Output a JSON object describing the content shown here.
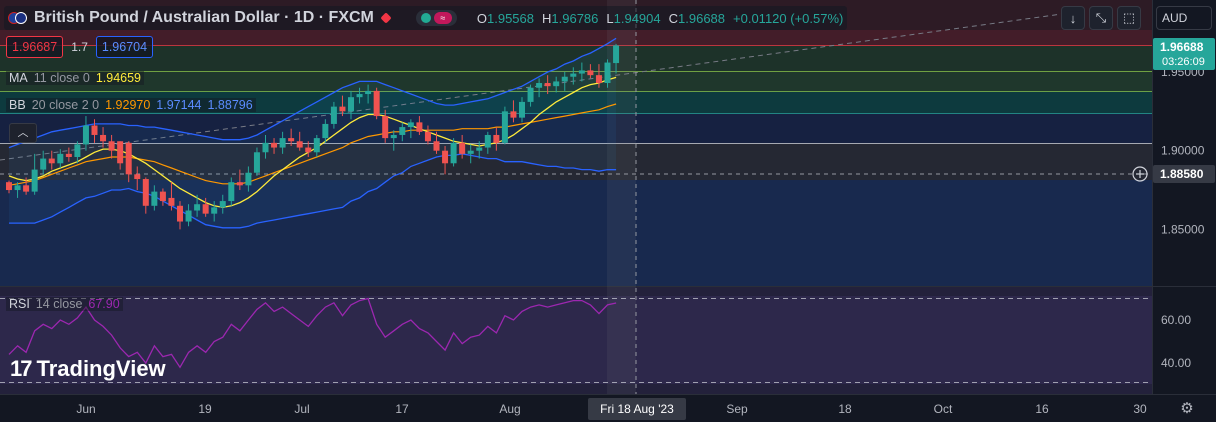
{
  "header": {
    "symbol_title": "British Pound / Australian Dollar · 1D · FXCM",
    "ohlc": [
      {
        "key": "O",
        "value": "1.95568"
      },
      {
        "key": "H",
        "value": "1.96786"
      },
      {
        "key": "L",
        "value": "1.94904"
      },
      {
        "key": "C",
        "value": "1.96688"
      }
    ],
    "change": "+0.01120 (+0.57%)",
    "currency": "AUD"
  },
  "trade": {
    "sell_price": "1.96687",
    "spread": "1.7",
    "buy_price": "1.96704"
  },
  "indicators": {
    "ma": {
      "name": "MA",
      "params": "11 close 0",
      "value": "1.94659",
      "color": "#ffeb3b"
    },
    "bb": {
      "name": "BB",
      "params": "20 close 2 0",
      "basis": "1.92970",
      "upper": "1.97144",
      "lower": "1.88796",
      "basis_color": "#ff9800",
      "band_color": "#2962ff"
    },
    "rsi": {
      "name": "RSI",
      "params": "14 close",
      "value": "67.90",
      "color": "#9c27b0"
    }
  },
  "price_axis": {
    "ticks": [
      "1.95000",
      "1.90000",
      "1.85000"
    ],
    "last_price": "1.96688",
    "countdown": "03:26:09",
    "crosshair_price": "1.88580"
  },
  "rsi_axis": {
    "ticks": [
      "60.00",
      "40.00"
    ]
  },
  "time_axis": {
    "ticks": [
      "Jun",
      "19",
      "Jul",
      "17",
      "Aug",
      "Sep",
      "18",
      "Oct",
      "16",
      "30"
    ],
    "crosshair_label": "Fri 18 Aug '23"
  },
  "branding": {
    "logo_text": "TradingView"
  },
  "colors": {
    "up": "#26a69a",
    "down": "#ef5350",
    "background": "#131722",
    "rsi": "#9c27b0"
  },
  "chart_data": {
    "type": "candlestick",
    "ohlc": [
      [
        1.88,
        1.881,
        1.873,
        1.875
      ],
      [
        1.875,
        1.88,
        1.87,
        1.878
      ],
      [
        1.878,
        1.883,
        1.872,
        1.874
      ],
      [
        1.874,
        1.898,
        1.872,
        1.888
      ],
      [
        1.888,
        1.9,
        1.885,
        1.895
      ],
      [
        1.895,
        1.9,
        1.888,
        1.892
      ],
      [
        1.892,
        1.901,
        1.889,
        1.898
      ],
      [
        1.898,
        1.902,
        1.893,
        1.896
      ],
      [
        1.896,
        1.906,
        1.892,
        1.904
      ],
      [
        1.904,
        1.922,
        1.9,
        1.916
      ],
      [
        1.916,
        1.92,
        1.905,
        1.91
      ],
      [
        1.91,
        1.915,
        1.902,
        1.906
      ],
      [
        1.906,
        1.91,
        1.895,
        1.9
      ],
      [
        1.906,
        1.906,
        1.888,
        1.892
      ],
      [
        1.905,
        1.906,
        1.88,
        1.885
      ],
      [
        1.885,
        1.89,
        1.875,
        1.882
      ],
      [
        1.882,
        1.883,
        1.86,
        1.865
      ],
      [
        1.865,
        1.878,
        1.862,
        1.874
      ],
      [
        1.874,
        1.876,
        1.865,
        1.868
      ],
      [
        1.87,
        1.88,
        1.862,
        1.865
      ],
      [
        1.865,
        1.868,
        1.85,
        1.855
      ],
      [
        1.855,
        1.866,
        1.852,
        1.862
      ],
      [
        1.862,
        1.872,
        1.858,
        1.866
      ],
      [
        1.866,
        1.87,
        1.858,
        1.86
      ],
      [
        1.86,
        1.868,
        1.855,
        1.864
      ],
      [
        1.864,
        1.872,
        1.86,
        1.868
      ],
      [
        1.868,
        1.883,
        1.865,
        1.88
      ],
      [
        1.88,
        1.888,
        1.875,
        1.878
      ],
      [
        1.878,
        1.89,
        1.874,
        1.886
      ],
      [
        1.886,
        1.902,
        1.884,
        1.899
      ],
      [
        1.899,
        1.91,
        1.895,
        1.905
      ],
      [
        1.905,
        1.908,
        1.898,
        1.902
      ],
      [
        1.902,
        1.912,
        1.898,
        1.908
      ],
      [
        1.908,
        1.914,
        1.903,
        1.906
      ],
      [
        1.906,
        1.912,
        1.9,
        1.902
      ],
      [
        1.902,
        1.906,
        1.896,
        1.899
      ],
      [
        1.899,
        1.91,
        1.896,
        1.908
      ],
      [
        1.908,
        1.92,
        1.905,
        1.917
      ],
      [
        1.917,
        1.931,
        1.914,
        1.928
      ],
      [
        1.928,
        1.935,
        1.922,
        1.925
      ],
      [
        1.925,
        1.938,
        1.92,
        1.934
      ],
      [
        1.934,
        1.94,
        1.93,
        1.936
      ],
      [
        1.936,
        1.942,
        1.93,
        1.938
      ],
      [
        1.938,
        1.94,
        1.92,
        1.922
      ],
      [
        1.922,
        1.926,
        1.905,
        1.908
      ],
      [
        1.908,
        1.913,
        1.9,
        1.91
      ],
      [
        1.91,
        1.918,
        1.906,
        1.915
      ],
      [
        1.915,
        1.92,
        1.908,
        1.918
      ],
      [
        1.918,
        1.922,
        1.91,
        1.912
      ],
      [
        1.912,
        1.916,
        1.904,
        1.906
      ],
      [
        1.906,
        1.912,
        1.898,
        1.9
      ],
      [
        1.9,
        1.903,
        1.885,
        1.892
      ],
      [
        1.892,
        1.908,
        1.89,
        1.905
      ],
      [
        1.905,
        1.91,
        1.895,
        1.898
      ],
      [
        1.898,
        1.904,
        1.892,
        1.9
      ],
      [
        1.9,
        1.906,
        1.895,
        1.902
      ],
      [
        1.902,
        1.912,
        1.898,
        1.91
      ],
      [
        1.91,
        1.915,
        1.9,
        1.905
      ],
      [
        1.905,
        1.928,
        1.904,
        1.925
      ],
      [
        1.925,
        1.932,
        1.918,
        1.921
      ],
      [
        1.921,
        1.934,
        1.918,
        1.931
      ],
      [
        1.931,
        1.942,
        1.928,
        1.94
      ],
      [
        1.94,
        1.946,
        1.934,
        1.943
      ],
      [
        1.943,
        1.948,
        1.936,
        1.941
      ],
      [
        1.941,
        1.947,
        1.937,
        1.944
      ],
      [
        1.944,
        1.95,
        1.938,
        1.947
      ],
      [
        1.947,
        1.953,
        1.942,
        1.949
      ],
      [
        1.949,
        1.956,
        1.944,
        1.951
      ],
      [
        1.951,
        1.955,
        1.946,
        1.948
      ],
      [
        1.948,
        1.955,
        1.94,
        1.943
      ],
      [
        1.943,
        1.958,
        1.94,
        1.956
      ],
      [
        1.95568,
        1.96786,
        1.94904,
        1.96688
      ]
    ],
    "ma_11": [
      1.884,
      1.882,
      1.881,
      1.882,
      1.884,
      1.887,
      1.889,
      1.891,
      1.893,
      1.896,
      1.899,
      1.901,
      1.901,
      1.9,
      1.898,
      1.895,
      1.892,
      1.888,
      1.884,
      1.88,
      1.876,
      1.873,
      1.87,
      1.867,
      1.865,
      1.864,
      1.865,
      1.867,
      1.87,
      1.874,
      1.879,
      1.884,
      1.888,
      1.892,
      1.896,
      1.899,
      1.902,
      1.906,
      1.91,
      1.914,
      1.918,
      1.921,
      1.923,
      1.923,
      1.922,
      1.92,
      1.918,
      1.916,
      1.914,
      1.912,
      1.91,
      1.908,
      1.906,
      1.905,
      1.904,
      1.903,
      1.904,
      1.905,
      1.907,
      1.91,
      1.914,
      1.918,
      1.923,
      1.927,
      1.931,
      1.934,
      1.937,
      1.94,
      1.942,
      1.943,
      1.945,
      1.94659
    ],
    "bb_basis": [
      1.878,
      1.879,
      1.88,
      1.881,
      1.883,
      1.885,
      1.887,
      1.889,
      1.891,
      1.893,
      1.894,
      1.895,
      1.896,
      1.896,
      1.896,
      1.895,
      1.894,
      1.893,
      1.891,
      1.889,
      1.887,
      1.885,
      1.883,
      1.881,
      1.88,
      1.879,
      1.879,
      1.879,
      1.88,
      1.882,
      1.884,
      1.886,
      1.888,
      1.89,
      1.892,
      1.894,
      1.896,
      1.898,
      1.9,
      1.902,
      1.905,
      1.907,
      1.909,
      1.91,
      1.911,
      1.912,
      1.912,
      1.913,
      1.913,
      1.913,
      1.913,
      1.913,
      1.913,
      1.914,
      1.914,
      1.914,
      1.914,
      1.915,
      1.915,
      1.916,
      1.917,
      1.918,
      1.919,
      1.92,
      1.921,
      1.922,
      1.923,
      1.924,
      1.925,
      1.926,
      1.928,
      1.9297
    ],
    "bb_upper": [
      1.902,
      1.904,
      1.906,
      1.908,
      1.91,
      1.912,
      1.913,
      1.914,
      1.915,
      1.916,
      1.917,
      1.917,
      1.917,
      1.917,
      1.916,
      1.916,
      1.915,
      1.915,
      1.914,
      1.913,
      1.912,
      1.911,
      1.91,
      1.909,
      1.908,
      1.907,
      1.907,
      1.907,
      1.908,
      1.91,
      1.913,
      1.916,
      1.919,
      1.922,
      1.925,
      1.928,
      1.931,
      1.934,
      1.937,
      1.94,
      1.942,
      1.944,
      1.944,
      1.944,
      1.942,
      1.94,
      1.938,
      1.936,
      1.934,
      1.932,
      1.93,
      1.929,
      1.929,
      1.93,
      1.931,
      1.932,
      1.933,
      1.935,
      1.937,
      1.939,
      1.941,
      1.944,
      1.947,
      1.95,
      1.952,
      1.955,
      1.957,
      1.96,
      1.962,
      1.965,
      1.968,
      1.97144
    ],
    "bb_lower": [
      1.854,
      1.854,
      1.854,
      1.854,
      1.856,
      1.858,
      1.861,
      1.864,
      1.867,
      1.87,
      1.871,
      1.873,
      1.875,
      1.875,
      1.876,
      1.874,
      1.873,
      1.871,
      1.868,
      1.865,
      1.862,
      1.859,
      1.856,
      1.853,
      1.852,
      1.851,
      1.851,
      1.851,
      1.852,
      1.854,
      1.855,
      1.856,
      1.857,
      1.858,
      1.859,
      1.86,
      1.861,
      1.862,
      1.863,
      1.864,
      1.868,
      1.87,
      1.874,
      1.876,
      1.88,
      1.884,
      1.886,
      1.89,
      1.892,
      1.894,
      1.896,
      1.897,
      1.897,
      1.898,
      1.897,
      1.896,
      1.895,
      1.895,
      1.893,
      1.893,
      1.893,
      1.892,
      1.891,
      1.89,
      1.89,
      1.889,
      1.889,
      1.888,
      1.888,
      1.887,
      1.888,
      1.88796
    ],
    "rsi": [
      44,
      48,
      45,
      55,
      58,
      56,
      60,
      58,
      61,
      66,
      60,
      57,
      53,
      47,
      43,
      45,
      40,
      48,
      43,
      44,
      38,
      45,
      48,
      45,
      50,
      52,
      58,
      55,
      60,
      65,
      68,
      64,
      66,
      63,
      60,
      57,
      62,
      66,
      68,
      62,
      67,
      69,
      70,
      58,
      52,
      55,
      58,
      60,
      56,
      54,
      50,
      46,
      54,
      49,
      52,
      53,
      57,
      54,
      62,
      60,
      64,
      66,
      67,
      66,
      67,
      68,
      69,
      69,
      67,
      63,
      67,
      67.9
    ],
    "rsi_levels": [
      70,
      30
    ],
    "ylim": [
      1.8,
      2.0
    ],
    "rsi_ylim": [
      20,
      80
    ]
  }
}
